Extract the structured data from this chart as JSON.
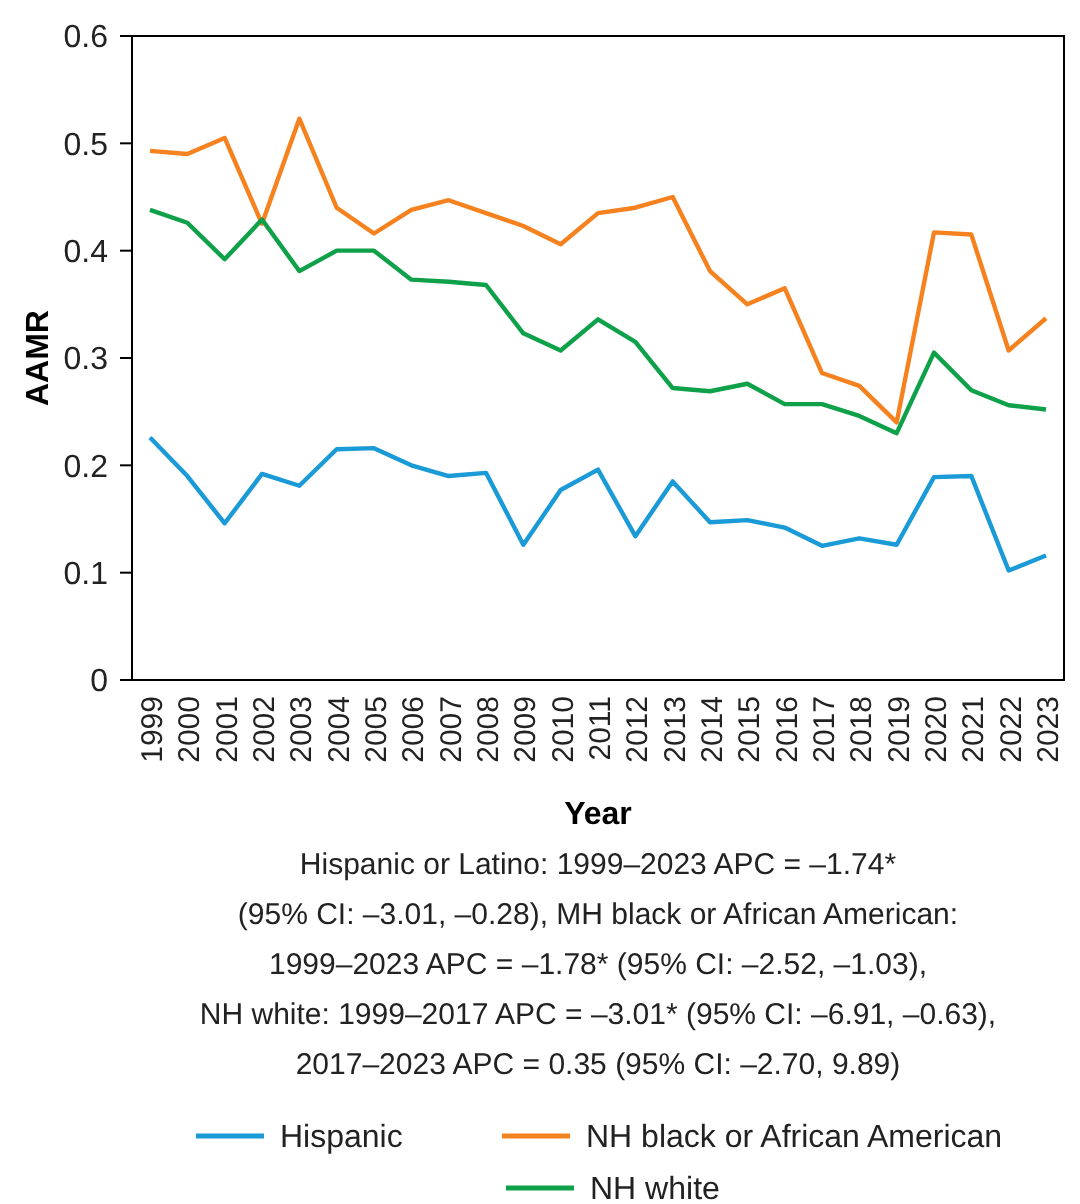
{
  "chart_data": {
    "type": "line",
    "xlabel": "Year",
    "ylabel": "AAMR",
    "categories": [
      "1999",
      "2000",
      "2001",
      "2002",
      "2003",
      "2004",
      "2005",
      "2006",
      "2007",
      "2008",
      "2009",
      "2010",
      "2011",
      "2012",
      "2013",
      "2014",
      "2015",
      "2016",
      "2017",
      "2018",
      "2019",
      "2020",
      "2021",
      "2022",
      "2023"
    ],
    "series": [
      {
        "name": "Hispanic",
        "color": "#1a9ad6",
        "values": [
          0.226,
          0.19,
          0.146,
          0.192,
          0.181,
          0.215,
          0.216,
          0.2,
          0.19,
          0.193,
          0.126,
          0.177,
          0.196,
          0.134,
          0.185,
          0.147,
          0.149,
          0.142,
          0.125,
          0.132,
          0.126,
          0.189,
          0.19,
          0.102,
          0.116
        ]
      },
      {
        "name": "NH black or African American",
        "color": "#f5821f",
        "values": [
          0.493,
          0.49,
          0.505,
          0.425,
          0.523,
          0.44,
          0.416,
          0.438,
          0.447,
          0.435,
          0.423,
          0.406,
          0.435,
          0.44,
          0.45,
          0.381,
          0.35,
          0.365,
          0.286,
          0.274,
          0.24,
          0.417,
          0.415,
          0.307,
          0.337
        ]
      },
      {
        "name": "NH white",
        "color": "#0fa14a",
        "values": [
          0.438,
          0.426,
          0.392,
          0.429,
          0.381,
          0.4,
          0.4,
          0.373,
          0.371,
          0.368,
          0.323,
          0.307,
          0.336,
          0.315,
          0.272,
          0.269,
          0.276,
          0.257,
          0.257,
          0.246,
          0.23,
          0.305,
          0.27,
          0.256,
          0.252
        ]
      }
    ],
    "ylim": [
      0,
      0.6
    ],
    "yticks": [
      0,
      0.1,
      0.2,
      0.3,
      0.4,
      0.5,
      0.6
    ],
    "annotations": [
      "Hispanic or Latino: 1999–2023 APC = –1.74*",
      "(95% CI: –3.01, –0.28), MH black or African American:",
      "1999–2023 APC = –1.78* (95% CI: –2.52, –1.03),",
      "NH white: 1999–2017 APC = –3.01* (95% CI: –6.91, –0.63),",
      "2017–2023 APC = 0.35 (95% CI: –2.70, 9.89)"
    ],
    "grid": false,
    "legend": "bottom",
    "line_style": "solid",
    "marker": "none"
  }
}
